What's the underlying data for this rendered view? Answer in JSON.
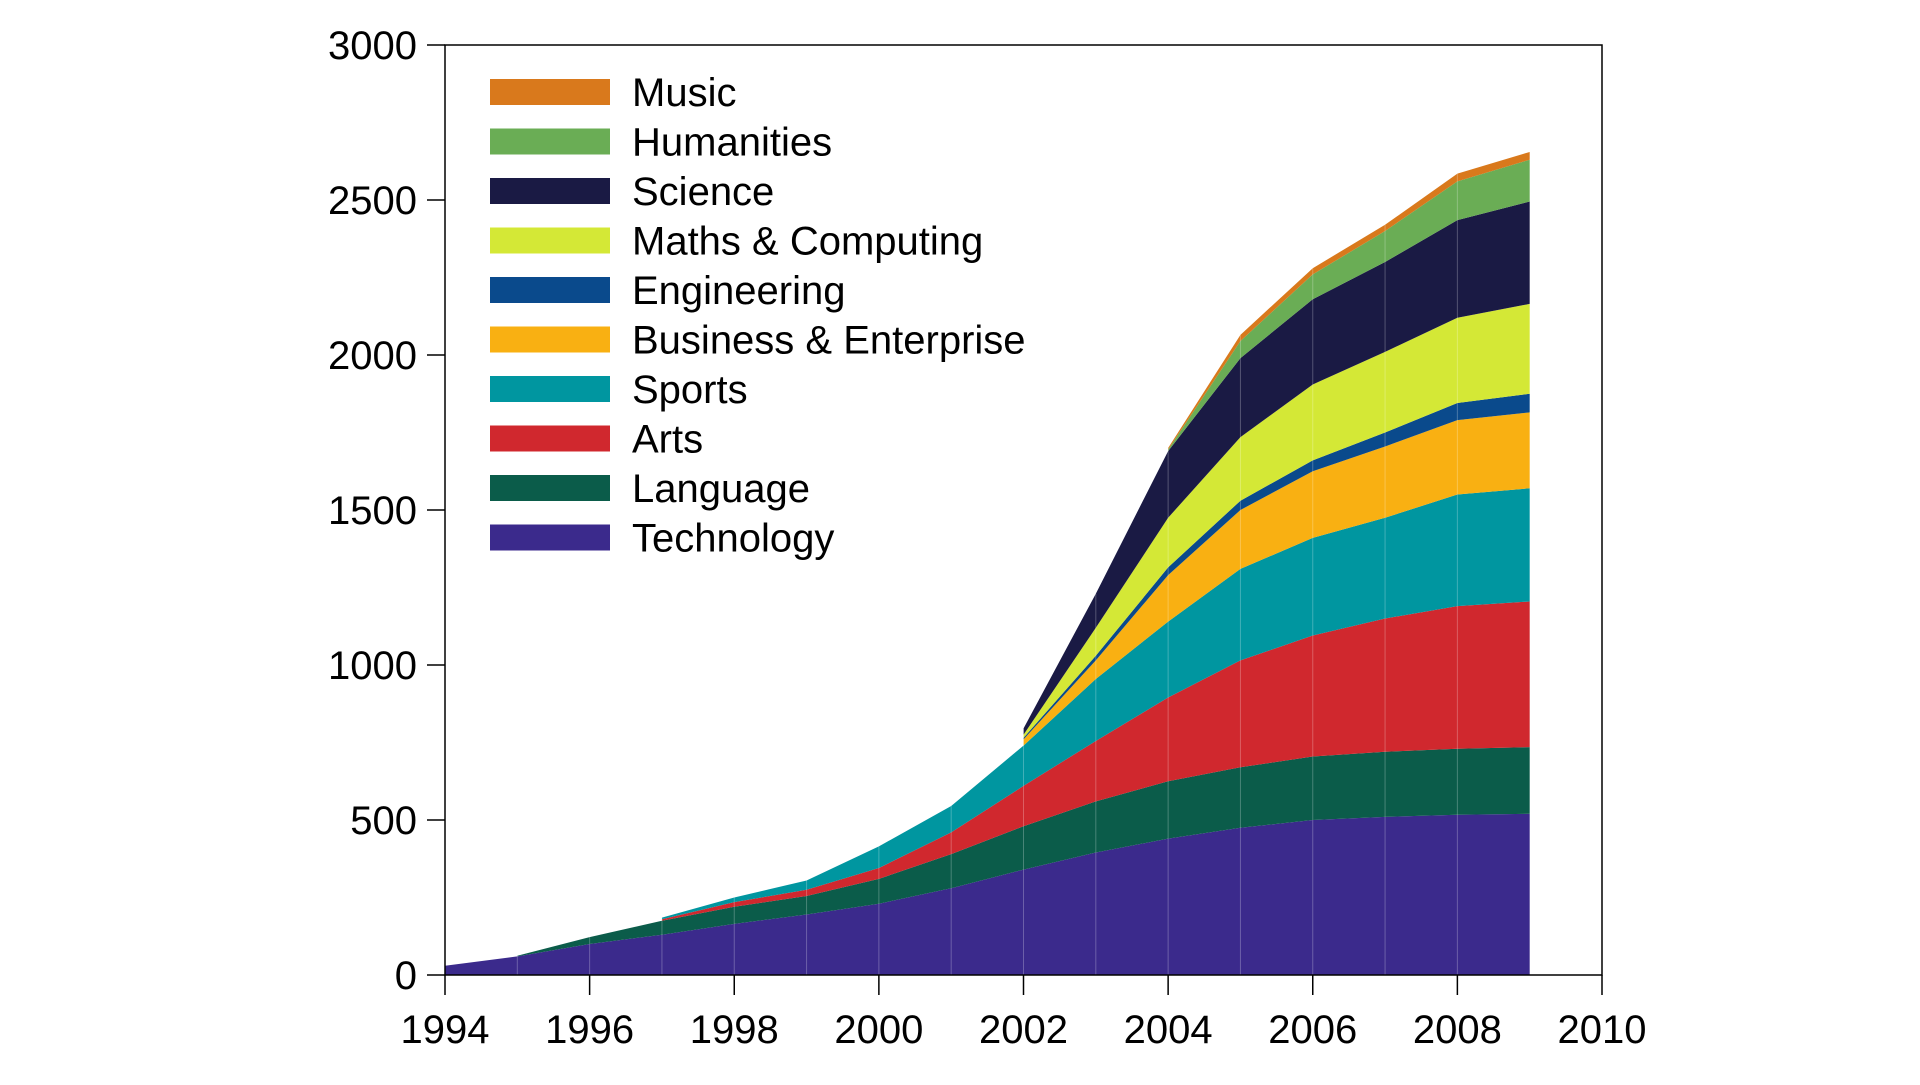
{
  "chart_data": {
    "type": "area",
    "stacked": true,
    "title": "",
    "xlabel": "",
    "ylabel": "",
    "xlim": [
      1994,
      2010
    ],
    "ylim": [
      0,
      3000
    ],
    "xticks": [
      1994,
      1996,
      1998,
      2000,
      2002,
      2004,
      2006,
      2008,
      2010
    ],
    "yticks": [
      0,
      500,
      1000,
      1500,
      2000,
      2500,
      3000
    ],
    "grid": false,
    "legend_position": "top-left",
    "x": [
      1994,
      1995,
      1996,
      1997,
      1998,
      1999,
      2000,
      2001,
      2002,
      2003,
      2004,
      2005,
      2006,
      2007,
      2008,
      2009
    ],
    "series": [
      {
        "name": "Technology",
        "color": "#3B2A8C",
        "values": [
          30,
          60,
          100,
          130,
          165,
          195,
          230,
          280,
          340,
          395,
          440,
          475,
          500,
          510,
          517,
          520
        ]
      },
      {
        "name": "Language",
        "color": "#0B5C4A",
        "values": [
          0,
          2,
          22,
          45,
          55,
          60,
          80,
          110,
          140,
          165,
          185,
          195,
          205,
          210,
          213,
          215
        ]
      },
      {
        "name": "Arts",
        "color": "#D0282E",
        "values": [
          0,
          0,
          0,
          5,
          15,
          20,
          35,
          70,
          130,
          195,
          270,
          345,
          390,
          430,
          460,
          470
        ]
      },
      {
        "name": "Sports",
        "color": "#0096A0",
        "values": [
          0,
          0,
          0,
          5,
          15,
          30,
          70,
          85,
          130,
          200,
          245,
          295,
          315,
          325,
          360,
          365
        ]
      },
      {
        "name": "Business & Enterprise",
        "color": "#F9B012",
        "values": [
          0,
          0,
          0,
          0,
          0,
          0,
          0,
          0,
          20,
          60,
          150,
          190,
          215,
          230,
          240,
          245
        ]
      },
      {
        "name": "Engineering",
        "color": "#0A4A8C",
        "values": [
          0,
          0,
          0,
          0,
          0,
          0,
          0,
          0,
          5,
          15,
          25,
          30,
          35,
          45,
          55,
          60
        ]
      },
      {
        "name": "Maths & Computing",
        "color": "#D4E836",
        "values": [
          0,
          0,
          0,
          0,
          0,
          0,
          0,
          0,
          10,
          90,
          160,
          205,
          245,
          260,
          275,
          290
        ]
      },
      {
        "name": "Science",
        "color": "#1A1A44",
        "values": [
          0,
          0,
          0,
          0,
          0,
          0,
          0,
          0,
          20,
          110,
          215,
          255,
          275,
          290,
          315,
          330
        ]
      },
      {
        "name": "Humanities",
        "color": "#6AAD55",
        "values": [
          0,
          0,
          0,
          0,
          0,
          0,
          0,
          0,
          0,
          0,
          5,
          55,
          80,
          100,
          125,
          135
        ]
      },
      {
        "name": "Music",
        "color": "#D9791C",
        "values": [
          0,
          0,
          0,
          0,
          0,
          0,
          0,
          0,
          0,
          0,
          5,
          20,
          20,
          20,
          25,
          25
        ]
      }
    ]
  }
}
